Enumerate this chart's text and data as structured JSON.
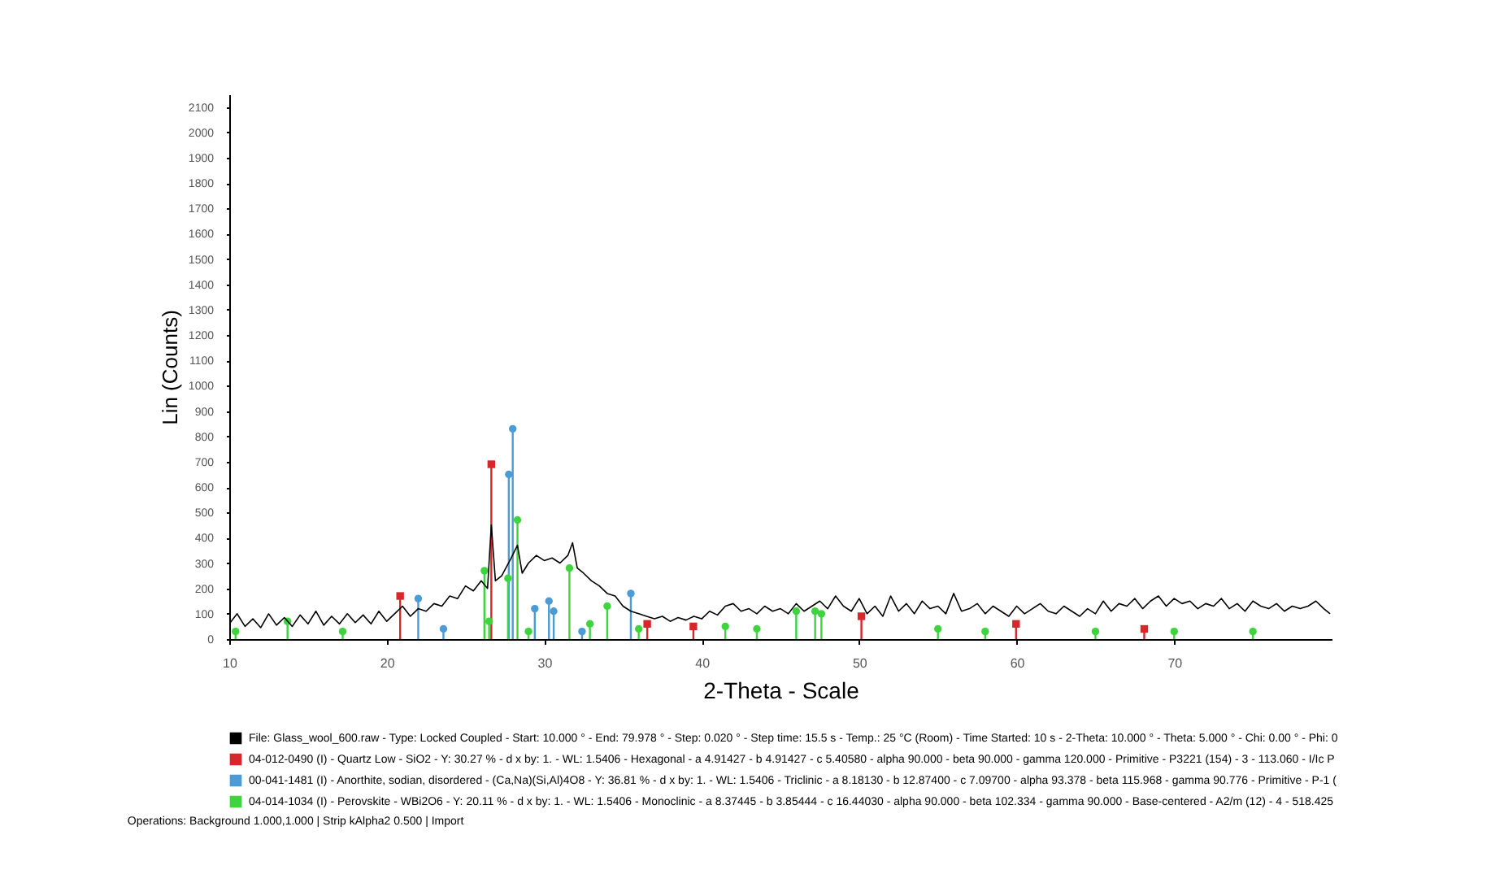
{
  "chart_data": {
    "type": "line",
    "xlabel": "2-Theta - Scale",
    "ylabel": "Lin (Counts)",
    "xlim": [
      10,
      80
    ],
    "ylim": [
      0,
      2150
    ],
    "xticks": [
      10,
      20,
      30,
      40,
      50,
      60,
      70
    ],
    "yticks": [
      0,
      100,
      200,
      300,
      400,
      500,
      600,
      700,
      800,
      900,
      1000,
      1100,
      1200,
      1300,
      1400,
      1500,
      1600,
      1700,
      1800,
      1900,
      2000,
      2100
    ],
    "grid": false,
    "legend": "bottom",
    "annotations": [
      "Operations: Background 1.000,1.000 | Strip kAlpha2 0.500 | Import"
    ],
    "series": [
      {
        "name": "File: Glass_wool_600.raw - Type: Locked Coupled - Start: 10.000 ° - End: 79.978 ° - Step: 0.020 ° - Step time: 15.5 s - Temp.: 25 °C (Room) - Time Started: 10 s - 2-Theta: 10.000 ° - Theta: 5.000 ° - Chi: 0.00 ° - Phi: 0",
        "type": "line",
        "color": "#000000",
        "marker": "none",
        "x": [
          10,
          10.5,
          11,
          11.5,
          12,
          12.5,
          13,
          13.5,
          14,
          14.5,
          15,
          15.5,
          16,
          16.5,
          17,
          17.5,
          18,
          18.5,
          19,
          19.5,
          20,
          20.5,
          21,
          21.5,
          22,
          22.5,
          23,
          23.5,
          24,
          24.5,
          25,
          25.5,
          26,
          26.4,
          26.64,
          26.9,
          27.3,
          27.9,
          28.3,
          28.6,
          29,
          29.5,
          30,
          30.5,
          31,
          31.5,
          31.8,
          32.1,
          32.5,
          33,
          33.5,
          34,
          34.5,
          35,
          35.5,
          36,
          36.5,
          37,
          37.5,
          38,
          38.5,
          39,
          39.5,
          40,
          40.5,
          41,
          41.5,
          42,
          42.5,
          43,
          43.5,
          44,
          44.5,
          45,
          45.5,
          46,
          46.5,
          47,
          47.5,
          48,
          48.5,
          49,
          49.5,
          50,
          50.5,
          51,
          51.5,
          52,
          52.5,
          53,
          53.5,
          54,
          54.5,
          55,
          55.5,
          56,
          56.5,
          57,
          57.5,
          58,
          58.5,
          59,
          59.5,
          60,
          60.5,
          61,
          61.5,
          62,
          62.5,
          63,
          63.5,
          64,
          64.5,
          65,
          65.5,
          66,
          66.5,
          67,
          67.5,
          68,
          68.5,
          69,
          69.5,
          70,
          70.5,
          71,
          71.5,
          72,
          72.5,
          73,
          73.5,
          74,
          74.5,
          75,
          75.5,
          76,
          76.5,
          77,
          77.5,
          78,
          78.5,
          79,
          79.5,
          79.9
        ],
        "values": [
          60,
          100,
          50,
          80,
          45,
          100,
          55,
          85,
          50,
          95,
          60,
          110,
          55,
          90,
          60,
          100,
          65,
          95,
          60,
          110,
          70,
          100,
          130,
          90,
          120,
          110,
          140,
          130,
          170,
          160,
          210,
          190,
          230,
          200,
          450,
          230,
          250,
          320,
          370,
          260,
          300,
          330,
          310,
          320,
          300,
          330,
          380,
          280,
          260,
          230,
          210,
          180,
          170,
          130,
          110,
          100,
          90,
          80,
          90,
          70,
          85,
          75,
          90,
          80,
          110,
          95,
          130,
          140,
          110,
          120,
          100,
          130,
          110,
          120,
          100,
          140,
          110,
          130,
          150,
          120,
          170,
          130,
          110,
          160,
          100,
          130,
          90,
          170,
          110,
          140,
          100,
          150,
          120,
          130,
          100,
          180,
          110,
          120,
          140,
          100,
          130,
          110,
          90,
          130,
          100,
          120,
          140,
          110,
          100,
          130,
          110,
          90,
          120,
          100,
          150,
          110,
          140,
          130,
          160,
          120,
          150,
          170,
          130,
          160,
          140,
          150,
          120,
          140,
          130,
          160,
          120,
          140,
          110,
          150,
          130,
          120,
          140,
          110,
          130,
          120,
          130,
          150,
          120,
          100
        ]
      },
      {
        "name": "04-012-0490 (I) - Quartz Low - SiO2 - Y: 30.27 % - d x by: 1. - WL: 1.5406 - Hexagonal - a 4.91427 - b 4.91427 - c 5.40580 - alpha 90.000 - beta 90.000 - gamma 120.000 - Primitive - P3221 (154) - 3 - 113.060 - I/Ic P",
        "type": "lollipop",
        "color": "#d9262b",
        "marker": "square",
        "x": [
          20.85,
          26.64,
          36.54,
          39.47,
          50.14,
          59.96,
          68.1
        ],
        "values": [
          170,
          690,
          60,
          50,
          90,
          60,
          40
        ]
      },
      {
        "name": "00-041-1481 (I) - Anorthite, sodian, disordered - (Ca,Na)(Si,Al)4O8 - Y: 36.81 % - d x by: 1. - WL: 1.5406 - Triclinic - a 8.18130 - b 12.87400 - c 7.09700 - alpha 93.378 - beta 115.968 - gamma 90.776 - Primitive - P-1 (",
        "type": "lollipop",
        "color": "#4a9bd6",
        "marker": "circle",
        "x": [
          22.0,
          23.6,
          27.75,
          28.0,
          29.4,
          30.3,
          30.6,
          32.4,
          35.5
        ],
        "values": [
          160,
          40,
          650,
          830,
          120,
          150,
          110,
          30,
          180
        ]
      },
      {
        "name": "04-014-1034 (I) - Perovskite - WBi2O6 - Y: 20.11 % - d x by: 1. - WL: 1.5406 - Monoclinic - a 8.37445 - b 3.85444 - c 16.44030 - alpha 90.000 - beta 102.334 - gamma 90.000 - Base-centered - A2/m (12) - 4 - 518.425",
        "type": "lollipop",
        "color": "#3ed43e",
        "marker": "circle",
        "x": [
          10.4,
          13.7,
          17.2,
          26.2,
          26.5,
          27.7,
          28.3,
          29.0,
          31.6,
          32.9,
          34.0,
          36.0,
          41.5,
          43.5,
          46.0,
          47.2,
          47.6,
          55.0,
          58.0,
          65.0,
          70.0,
          75.0
        ],
        "values": [
          30,
          70,
          30,
          270,
          70,
          240,
          470,
          30,
          280,
          60,
          130,
          40,
          50,
          40,
          110,
          110,
          100,
          40,
          30,
          30,
          30,
          30
        ]
      }
    ]
  }
}
